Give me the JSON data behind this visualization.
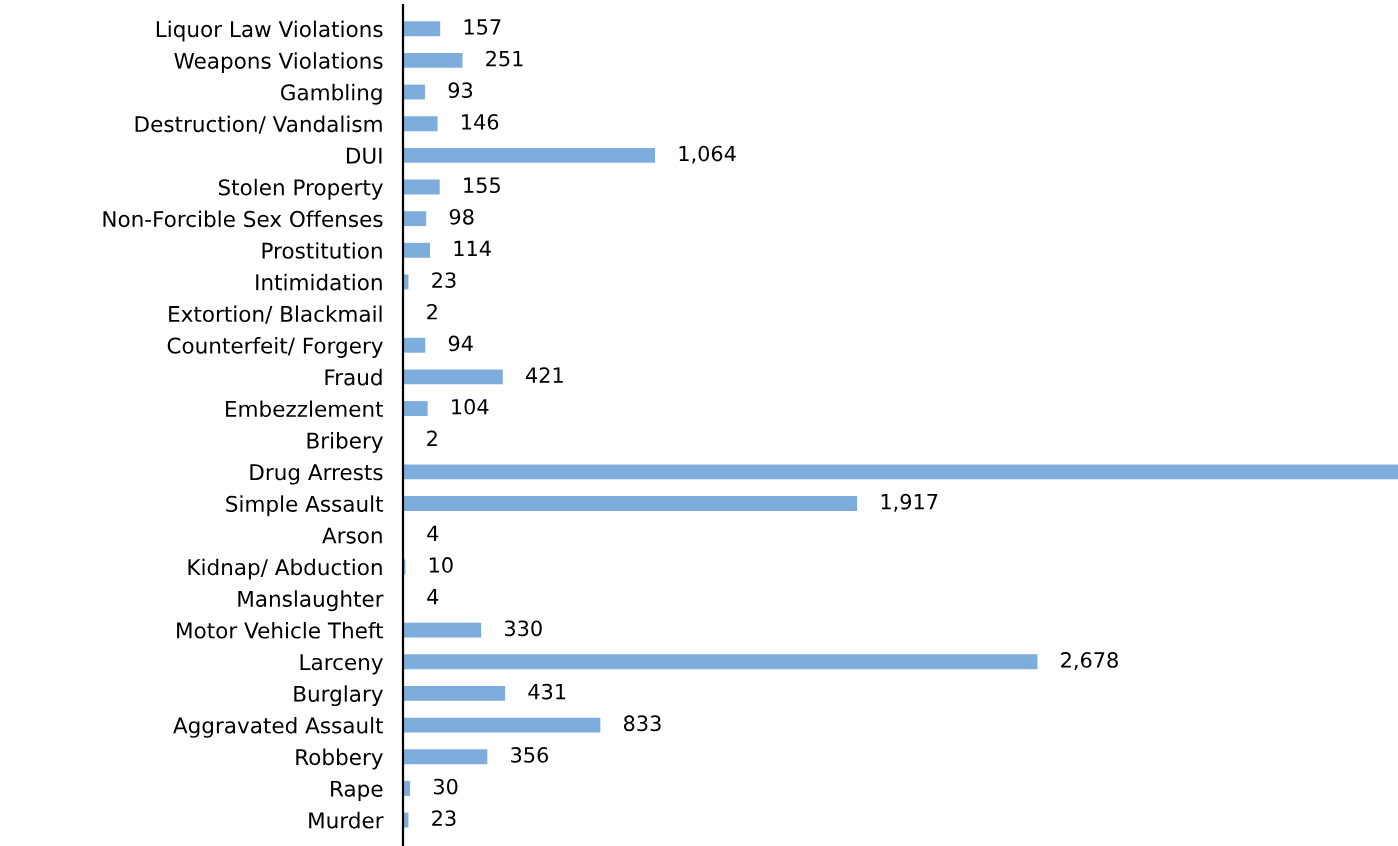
{
  "chart_data": {
    "type": "bar",
    "orientation": "horizontal",
    "categories": [
      "Liquor Law Violations",
      "Weapons Violations",
      "Gambling",
      "Destruction/ Vandalism",
      "DUI",
      "Stolen Property",
      "Non-Forcible Sex Offenses",
      "Prostitution",
      "Intimidation",
      "Extortion/ Blackmail",
      "Counterfeit/ Forgery",
      "Fraud",
      "Embezzlement",
      "Bribery",
      "Drug Arrests",
      "Simple Assault",
      "Arson",
      "Kidnap/ Abduction",
      "Manslaughter",
      "Motor Vehicle Theft",
      "Larceny",
      "Burglary",
      "Aggravated Assault",
      "Robbery",
      "Rape",
      "Murder"
    ],
    "values": [
      157,
      251,
      93,
      146,
      1064,
      155,
      98,
      114,
      23,
      2,
      94,
      421,
      104,
      2,
      4200,
      1917,
      4,
      10,
      4,
      330,
      2678,
      431,
      833,
      356,
      30,
      23
    ],
    "value_labels": [
      "157",
      "251",
      "93",
      "146",
      "1,064",
      "155",
      "98",
      "114",
      "23",
      "2",
      "94",
      "421",
      "104",
      "2",
      null,
      "1,917",
      "4",
      "10",
      "4",
      "330",
      "2,678",
      "431",
      "833",
      "356",
      "30",
      "23"
    ],
    "color": "#7eacdc",
    "xlim": [
      0,
      4200
    ],
    "tick_labels": "y",
    "grid": false,
    "legend": false
  }
}
